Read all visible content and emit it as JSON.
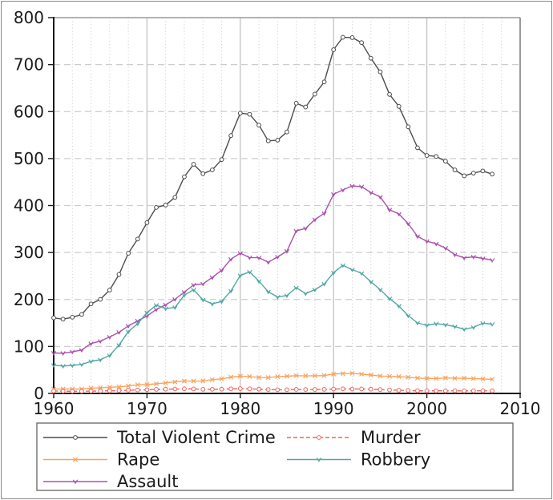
{
  "window": {
    "background": "#ffffff",
    "border_color": "#8a8a8a"
  },
  "chart_data": {
    "type": "line",
    "title": "",
    "xlabel": "",
    "ylabel": "",
    "xlim": [
      1960,
      2010
    ],
    "ylim": [
      0,
      800
    ],
    "xticks": [
      "1960",
      "1970",
      "1980",
      "1990",
      "2000",
      "2010"
    ],
    "yticks": [
      "0",
      "100",
      "200",
      "300",
      "400",
      "500",
      "600",
      "700",
      "800"
    ],
    "grid": {
      "major_vertical": "solid",
      "minor_vertical": "dotted-every-2-years",
      "major_horizontal": "dashed",
      "grid_color": "#cccccc"
    },
    "legend_position": "bottom",
    "legend_columns": [
      [
        "Total Violent Crime",
        "Rape",
        "Assault"
      ],
      [
        "Murder",
        "Robbery"
      ]
    ],
    "x": [
      1960,
      1961,
      1962,
      1963,
      1964,
      1965,
      1966,
      1967,
      1968,
      1969,
      1970,
      1971,
      1972,
      1973,
      1974,
      1975,
      1976,
      1977,
      1978,
      1979,
      1980,
      1981,
      1982,
      1983,
      1984,
      1985,
      1986,
      1987,
      1988,
      1989,
      1990,
      1991,
      1992,
      1993,
      1994,
      1995,
      1996,
      1997,
      1998,
      1999,
      2000,
      2001,
      2002,
      2003,
      2004,
      2005,
      2006,
      2007
    ],
    "series": [
      {
        "name": "Total Violent Crime",
        "color": "#4d4d4d",
        "marker": "circle-open",
        "line": "solid",
        "values": [
          160.9,
          158.1,
          162.3,
          168.2,
          190.6,
          200.2,
          220.0,
          253.2,
          298.4,
          328.7,
          363.5,
          396.0,
          401.0,
          417.4,
          461.1,
          487.8,
          467.8,
          475.9,
          497.8,
          548.9,
          596.6,
          594.3,
          571.1,
          537.7,
          539.2,
          556.6,
          617.7,
          609.7,
          637.2,
          663.1,
          731.8,
          758.1,
          757.5,
          746.8,
          713.6,
          684.5,
          636.6,
          611.0,
          567.6,
          523.0,
          506.5,
          504.5,
          494.4,
          475.8,
          463.2,
          469.0,
          473.6,
          466.9
        ]
      },
      {
        "name": "Rape",
        "color": "#fba35c",
        "marker": "x",
        "line": "solid",
        "values": [
          9.6,
          9.4,
          9.4,
          9.4,
          11.2,
          12.1,
          13.2,
          14.0,
          15.9,
          18.5,
          18.7,
          20.5,
          22.5,
          24.5,
          26.2,
          26.3,
          26.6,
          29.4,
          31.0,
          34.7,
          36.8,
          36.0,
          34.0,
          33.8,
          35.7,
          36.7,
          37.9,
          37.4,
          37.6,
          38.1,
          41.2,
          42.3,
          42.8,
          41.1,
          39.3,
          37.1,
          36.3,
          35.9,
          34.5,
          32.8,
          32.0,
          31.8,
          33.1,
          32.3,
          32.4,
          31.8,
          30.9,
          30.0
        ]
      },
      {
        "name": "Assault",
        "color": "#ab51ae",
        "marker": "caret",
        "line": "solid",
        "values": [
          86.1,
          85.7,
          88.6,
          92.4,
          106.2,
          111.3,
          120.3,
          130.2,
          143.8,
          154.5,
          164.8,
          178.8,
          188.8,
          200.5,
          215.8,
          231.1,
          233.2,
          247.0,
          262.1,
          286.0,
          298.5,
          289.3,
          289.0,
          279.4,
          290.6,
          302.9,
          346.1,
          351.3,
          370.2,
          383.4,
          424.1,
          433.3,
          441.8,
          440.3,
          427.6,
          418.3,
          390.9,
          382.1,
          361.4,
          334.3,
          324.0,
          318.6,
          309.5,
          295.4,
          288.6,
          290.8,
          287.5,
          283.8
        ]
      },
      {
        "name": "Murder",
        "color": "#f4645d",
        "marker": "circle-open",
        "line": "dashed",
        "values": [
          5.1,
          4.8,
          4.6,
          4.6,
          4.9,
          5.1,
          5.6,
          6.2,
          6.9,
          7.3,
          7.9,
          8.6,
          9.0,
          9.4,
          9.8,
          9.6,
          8.7,
          8.8,
          9.0,
          9.7,
          10.2,
          9.8,
          9.1,
          8.3,
          7.9,
          7.9,
          8.6,
          8.3,
          8.4,
          8.7,
          9.4,
          9.8,
          9.3,
          9.5,
          9.0,
          8.2,
          7.4,
          6.8,
          6.3,
          5.7,
          5.5,
          5.6,
          5.6,
          5.7,
          5.5,
          5.6,
          5.7,
          5.6
        ]
      },
      {
        "name": "Robbery",
        "color": "#4fa8a4",
        "marker": "caret",
        "line": "solid",
        "values": [
          60.1,
          58.3,
          59.7,
          61.8,
          68.2,
          71.7,
          80.8,
          102.8,
          131.8,
          148.4,
          172.1,
          188.0,
          180.7,
          183.1,
          209.3,
          220.8,
          199.3,
          190.7,
          195.8,
          218.4,
          251.1,
          258.7,
          238.9,
          216.5,
          205.4,
          208.5,
          225.1,
          212.7,
          220.9,
          233.0,
          257.0,
          272.7,
          263.6,
          255.9,
          237.7,
          220.9,
          201.9,
          186.2,
          165.5,
          150.1,
          145.0,
          148.5,
          146.1,
          142.5,
          136.7,
          140.8,
          149.4,
          147.6
        ]
      }
    ]
  }
}
